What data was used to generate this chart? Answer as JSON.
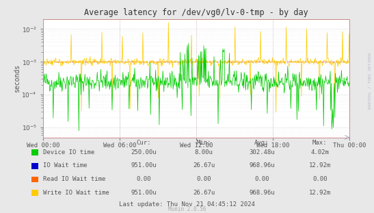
{
  "title": "Average latency for /dev/vg0/lv-0-tmp - by day",
  "ylabel": "seconds",
  "bg_color": "#e8e8e8",
  "plot_bg_color": "#ffffff",
  "xticklabels": [
    "Wed 00:00",
    "Wed 06:00",
    "Wed 12:00",
    "Wed 18:00",
    "Thu 00:00"
  ],
  "legend_entries": [
    {
      "label": "Device IO time",
      "color": "#00cc00",
      "cur": "250.00u",
      "min": "8.00u",
      "avg": "302.48u",
      "max": "4.02m"
    },
    {
      "label": "IO Wait time",
      "color": "#0000cc",
      "cur": "951.00u",
      "min": "26.67u",
      "avg": "968.96u",
      "max": "12.92m"
    },
    {
      "label": "Read IO Wait time",
      "color": "#ff6600",
      "cur": "0.00",
      "min": "0.00",
      "avg": "0.00",
      "max": "0.00"
    },
    {
      "label": "Write IO Wait time",
      "color": "#ffcc00",
      "cur": "951.00u",
      "min": "26.67u",
      "avg": "968.96u",
      "max": "12.92m"
    }
  ],
  "last_update": "Last update: Thu Nov 21 04:45:12 2024",
  "munin_version": "Munin 2.0.56",
  "watermark": "RRDTOOL / TOBI OETIKER",
  "num_points": 600
}
